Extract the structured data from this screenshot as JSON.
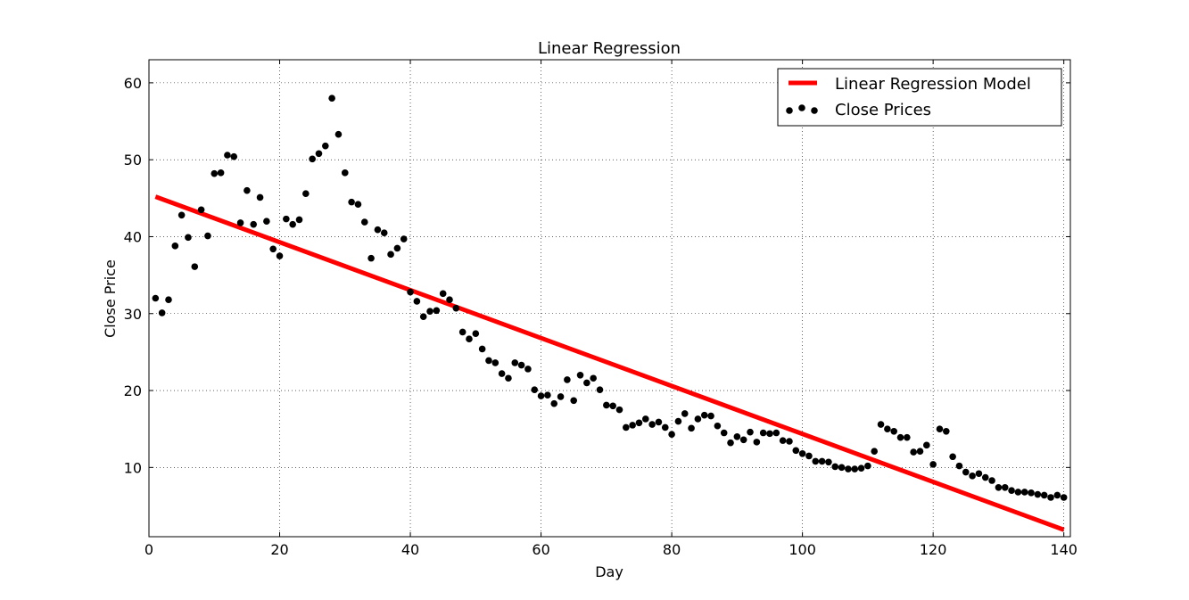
{
  "chart_data": {
    "type": "scatter",
    "title": "Linear Regression",
    "xlabel": "Day",
    "ylabel": "Close Price",
    "xlim": [
      0,
      141
    ],
    "ylim": [
      1,
      63
    ],
    "xticks": [
      0,
      20,
      40,
      60,
      80,
      100,
      120,
      140
    ],
    "yticks": [
      10,
      20,
      30,
      40,
      50,
      60
    ],
    "grid": true,
    "legend_position": "top-right",
    "colors": {
      "regression_line": "#ff0000",
      "points": "#000000"
    },
    "series": [
      {
        "name": "Linear Regression Model",
        "kind": "line",
        "x": [
          1,
          140
        ],
        "y": [
          45.2,
          1.9
        ]
      },
      {
        "name": "Close Prices",
        "kind": "scatter",
        "x": [
          1,
          2,
          3,
          4,
          5,
          6,
          7,
          8,
          9,
          10,
          11,
          12,
          13,
          14,
          15,
          16,
          17,
          18,
          19,
          20,
          21,
          22,
          23,
          24,
          25,
          26,
          27,
          28,
          29,
          30,
          31,
          32,
          33,
          34,
          35,
          36,
          37,
          38,
          39,
          40,
          41,
          42,
          43,
          44,
          45,
          46,
          47,
          48,
          49,
          50,
          51,
          52,
          53,
          54,
          55,
          56,
          57,
          58,
          59,
          60,
          61,
          62,
          63,
          64,
          65,
          66,
          67,
          68,
          69,
          70,
          71,
          72,
          73,
          74,
          75,
          76,
          77,
          78,
          79,
          80,
          81,
          82,
          83,
          84,
          85,
          86,
          87,
          88,
          89,
          90,
          91,
          92,
          93,
          94,
          95,
          96,
          97,
          98,
          99,
          100,
          101,
          102,
          103,
          104,
          105,
          106,
          107,
          108,
          109,
          110,
          111,
          112,
          113,
          114,
          115,
          116,
          117,
          118,
          119,
          120,
          121,
          122,
          123,
          124,
          125,
          126,
          127,
          128,
          129,
          130,
          131,
          132,
          133,
          134,
          135,
          136,
          137,
          138,
          139,
          140
        ],
        "y": [
          32.0,
          30.1,
          31.8,
          38.8,
          42.8,
          39.9,
          36.1,
          43.5,
          40.1,
          48.2,
          48.3,
          50.6,
          50.4,
          41.8,
          46.0,
          41.6,
          45.1,
          42.0,
          38.4,
          37.5,
          42.3,
          41.6,
          42.2,
          45.6,
          50.1,
          50.8,
          51.8,
          58.0,
          53.3,
          48.3,
          44.5,
          44.2,
          41.9,
          37.2,
          40.9,
          40.5,
          37.7,
          38.5,
          39.7,
          32.8,
          31.6,
          29.6,
          30.3,
          30.4,
          32.6,
          31.8,
          30.7,
          27.6,
          26.7,
          27.4,
          25.4,
          23.9,
          23.6,
          22.2,
          21.6,
          23.6,
          23.3,
          22.8,
          20.1,
          19.3,
          19.4,
          18.3,
          19.2,
          21.4,
          18.7,
          22.0,
          21.0,
          21.6,
          20.1,
          18.1,
          18.0,
          17.5,
          15.2,
          15.5,
          15.8,
          16.3,
          15.6,
          15.9,
          15.2,
          14.3,
          16.0,
          17.0,
          15.1,
          16.3,
          16.8,
          16.7,
          15.4,
          14.5,
          13.2,
          14.0,
          13.6,
          14.6,
          13.3,
          14.5,
          14.4,
          14.5,
          13.5,
          13.4,
          12.2,
          11.8,
          11.5,
          10.8,
          10.8,
          10.7,
          10.1,
          10.0,
          9.8,
          9.8,
          9.9,
          10.2,
          12.1,
          15.6,
          15.0,
          14.7,
          13.9,
          13.9,
          12.0,
          12.1,
          12.9,
          10.4,
          15.0,
          14.7,
          11.4,
          10.2,
          9.4,
          8.9,
          9.2,
          8.7,
          8.3,
          7.4,
          7.4,
          7.0,
          6.8,
          6.8,
          6.7,
          6.5,
          6.4,
          6.1,
          6.4,
          6.1
        ]
      }
    ]
  }
}
